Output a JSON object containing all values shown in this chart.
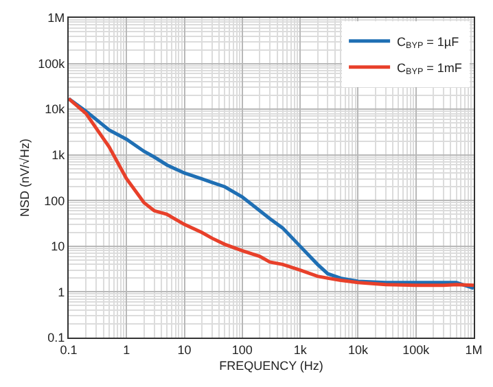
{
  "chart_data": {
    "type": "line",
    "xlabel": "FREQUENCY (Hz)",
    "ylabel": "NSD (nV/√Hz)",
    "x": [
      0.1,
      0.2,
      0.5,
      1,
      2,
      3,
      5,
      10,
      20,
      30,
      50,
      100,
      200,
      300,
      500,
      1000,
      2000,
      3000,
      5000,
      10000,
      30000,
      100000,
      300000,
      500000,
      1000000
    ],
    "series": [
      {
        "name": "C$_{BYP}$ = 1µF",
        "color": "#1f6fb4",
        "values": [
          17000,
          9000,
          3500,
          2200,
          1200,
          900,
          600,
          400,
          300,
          250,
          200,
          120,
          60,
          40,
          25,
          10,
          4,
          2.5,
          2,
          1.7,
          1.6,
          1.6,
          1.6,
          1.6,
          1.2
        ]
      },
      {
        "name": "C$_{BYP}$ = 1mF",
        "color": "#e8402a",
        "values": [
          17000,
          8000,
          1500,
          300,
          90,
          60,
          50,
          30,
          20,
          15,
          11,
          8,
          6,
          4.5,
          4,
          3,
          2.2,
          2,
          1.8,
          1.6,
          1.45,
          1.4,
          1.4,
          1.45,
          1.4
        ]
      }
    ],
    "log": "xy",
    "xlim": [
      0.1,
      1000000
    ],
    "ylim": [
      0.1,
      1000000
    ],
    "xticks": [
      {
        "value": 0.1,
        "label": "0.1"
      },
      {
        "value": 1,
        "label": "1"
      },
      {
        "value": 10,
        "label": "10"
      },
      {
        "value": 100,
        "label": "100"
      },
      {
        "value": 1000,
        "label": "1k"
      },
      {
        "value": 10000,
        "label": "10k"
      },
      {
        "value": 100000,
        "label": "100k"
      },
      {
        "value": 1000000,
        "label": "1M"
      }
    ],
    "yticks": [
      {
        "value": 0.1,
        "label": "0.1"
      },
      {
        "value": 1,
        "label": "1"
      },
      {
        "value": 10,
        "label": "10"
      },
      {
        "value": 100,
        "label": "100"
      },
      {
        "value": 1000,
        "label": "1k"
      },
      {
        "value": 10000,
        "label": "10k"
      },
      {
        "value": 100000,
        "label": "100k"
      },
      {
        "value": 1000000,
        "label": "1M"
      }
    ],
    "grid": true,
    "legend": "top right"
  }
}
